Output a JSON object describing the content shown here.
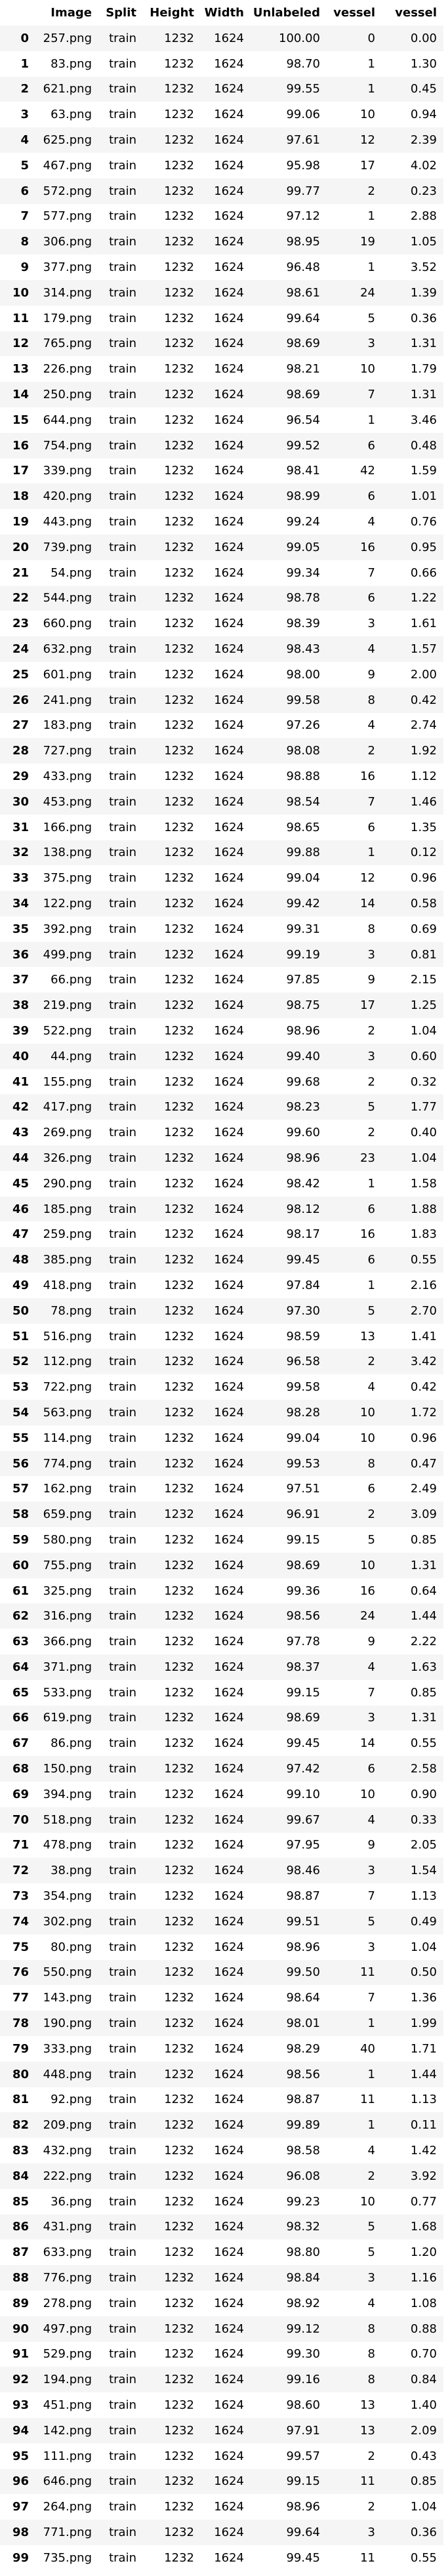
{
  "table": {
    "columns": [
      "Image",
      "Split",
      "Height",
      "Width",
      "Unlabeled",
      "vessel",
      "vessel"
    ],
    "rows": [
      [
        "0",
        "257.png",
        "train",
        "1232",
        "1624",
        "100.00",
        "0",
        "0.00"
      ],
      [
        "1",
        "83.png",
        "train",
        "1232",
        "1624",
        "98.70",
        "1",
        "1.30"
      ],
      [
        "2",
        "621.png",
        "train",
        "1232",
        "1624",
        "99.55",
        "1",
        "0.45"
      ],
      [
        "3",
        "63.png",
        "train",
        "1232",
        "1624",
        "99.06",
        "10",
        "0.94"
      ],
      [
        "4",
        "625.png",
        "train",
        "1232",
        "1624",
        "97.61",
        "12",
        "2.39"
      ],
      [
        "5",
        "467.png",
        "train",
        "1232",
        "1624",
        "95.98",
        "17",
        "4.02"
      ],
      [
        "6",
        "572.png",
        "train",
        "1232",
        "1624",
        "99.77",
        "2",
        "0.23"
      ],
      [
        "7",
        "577.png",
        "train",
        "1232",
        "1624",
        "97.12",
        "1",
        "2.88"
      ],
      [
        "8",
        "306.png",
        "train",
        "1232",
        "1624",
        "98.95",
        "19",
        "1.05"
      ],
      [
        "9",
        "377.png",
        "train",
        "1232",
        "1624",
        "96.48",
        "1",
        "3.52"
      ],
      [
        "10",
        "314.png",
        "train",
        "1232",
        "1624",
        "98.61",
        "24",
        "1.39"
      ],
      [
        "11",
        "179.png",
        "train",
        "1232",
        "1624",
        "99.64",
        "5",
        "0.36"
      ],
      [
        "12",
        "765.png",
        "train",
        "1232",
        "1624",
        "98.69",
        "3",
        "1.31"
      ],
      [
        "13",
        "226.png",
        "train",
        "1232",
        "1624",
        "98.21",
        "10",
        "1.79"
      ],
      [
        "14",
        "250.png",
        "train",
        "1232",
        "1624",
        "98.69",
        "7",
        "1.31"
      ],
      [
        "15",
        "644.png",
        "train",
        "1232",
        "1624",
        "96.54",
        "1",
        "3.46"
      ],
      [
        "16",
        "754.png",
        "train",
        "1232",
        "1624",
        "99.52",
        "6",
        "0.48"
      ],
      [
        "17",
        "339.png",
        "train",
        "1232",
        "1624",
        "98.41",
        "42",
        "1.59"
      ],
      [
        "18",
        "420.png",
        "train",
        "1232",
        "1624",
        "98.99",
        "6",
        "1.01"
      ],
      [
        "19",
        "443.png",
        "train",
        "1232",
        "1624",
        "99.24",
        "4",
        "0.76"
      ],
      [
        "20",
        "739.png",
        "train",
        "1232",
        "1624",
        "99.05",
        "16",
        "0.95"
      ],
      [
        "21",
        "54.png",
        "train",
        "1232",
        "1624",
        "99.34",
        "7",
        "0.66"
      ],
      [
        "22",
        "544.png",
        "train",
        "1232",
        "1624",
        "98.78",
        "6",
        "1.22"
      ],
      [
        "23",
        "660.png",
        "train",
        "1232",
        "1624",
        "98.39",
        "3",
        "1.61"
      ],
      [
        "24",
        "632.png",
        "train",
        "1232",
        "1624",
        "98.43",
        "4",
        "1.57"
      ],
      [
        "25",
        "601.png",
        "train",
        "1232",
        "1624",
        "98.00",
        "9",
        "2.00"
      ],
      [
        "26",
        "241.png",
        "train",
        "1232",
        "1624",
        "99.58",
        "8",
        "0.42"
      ],
      [
        "27",
        "183.png",
        "train",
        "1232",
        "1624",
        "97.26",
        "4",
        "2.74"
      ],
      [
        "28",
        "727.png",
        "train",
        "1232",
        "1624",
        "98.08",
        "2",
        "1.92"
      ],
      [
        "29",
        "433.png",
        "train",
        "1232",
        "1624",
        "98.88",
        "16",
        "1.12"
      ],
      [
        "30",
        "453.png",
        "train",
        "1232",
        "1624",
        "98.54",
        "7",
        "1.46"
      ],
      [
        "31",
        "166.png",
        "train",
        "1232",
        "1624",
        "98.65",
        "6",
        "1.35"
      ],
      [
        "32",
        "138.png",
        "train",
        "1232",
        "1624",
        "99.88",
        "1",
        "0.12"
      ],
      [
        "33",
        "375.png",
        "train",
        "1232",
        "1624",
        "99.04",
        "12",
        "0.96"
      ],
      [
        "34",
        "122.png",
        "train",
        "1232",
        "1624",
        "99.42",
        "14",
        "0.58"
      ],
      [
        "35",
        "392.png",
        "train",
        "1232",
        "1624",
        "99.31",
        "8",
        "0.69"
      ],
      [
        "36",
        "499.png",
        "train",
        "1232",
        "1624",
        "99.19",
        "3",
        "0.81"
      ],
      [
        "37",
        "66.png",
        "train",
        "1232",
        "1624",
        "97.85",
        "9",
        "2.15"
      ],
      [
        "38",
        "219.png",
        "train",
        "1232",
        "1624",
        "98.75",
        "17",
        "1.25"
      ],
      [
        "39",
        "522.png",
        "train",
        "1232",
        "1624",
        "98.96",
        "2",
        "1.04"
      ],
      [
        "40",
        "44.png",
        "train",
        "1232",
        "1624",
        "99.40",
        "3",
        "0.60"
      ],
      [
        "41",
        "155.png",
        "train",
        "1232",
        "1624",
        "99.68",
        "2",
        "0.32"
      ],
      [
        "42",
        "417.png",
        "train",
        "1232",
        "1624",
        "98.23",
        "5",
        "1.77"
      ],
      [
        "43",
        "269.png",
        "train",
        "1232",
        "1624",
        "99.60",
        "2",
        "0.40"
      ],
      [
        "44",
        "326.png",
        "train",
        "1232",
        "1624",
        "98.96",
        "23",
        "1.04"
      ],
      [
        "45",
        "290.png",
        "train",
        "1232",
        "1624",
        "98.42",
        "1",
        "1.58"
      ],
      [
        "46",
        "185.png",
        "train",
        "1232",
        "1624",
        "98.12",
        "6",
        "1.88"
      ],
      [
        "47",
        "259.png",
        "train",
        "1232",
        "1624",
        "98.17",
        "16",
        "1.83"
      ],
      [
        "48",
        "385.png",
        "train",
        "1232",
        "1624",
        "99.45",
        "6",
        "0.55"
      ],
      [
        "49",
        "418.png",
        "train",
        "1232",
        "1624",
        "97.84",
        "1",
        "2.16"
      ],
      [
        "50",
        "78.png",
        "train",
        "1232",
        "1624",
        "97.30",
        "5",
        "2.70"
      ],
      [
        "51",
        "516.png",
        "train",
        "1232",
        "1624",
        "98.59",
        "13",
        "1.41"
      ],
      [
        "52",
        "112.png",
        "train",
        "1232",
        "1624",
        "96.58",
        "2",
        "3.42"
      ],
      [
        "53",
        "722.png",
        "train",
        "1232",
        "1624",
        "99.58",
        "4",
        "0.42"
      ],
      [
        "54",
        "563.png",
        "train",
        "1232",
        "1624",
        "98.28",
        "10",
        "1.72"
      ],
      [
        "55",
        "114.png",
        "train",
        "1232",
        "1624",
        "99.04",
        "10",
        "0.96"
      ],
      [
        "56",
        "774.png",
        "train",
        "1232",
        "1624",
        "99.53",
        "8",
        "0.47"
      ],
      [
        "57",
        "162.png",
        "train",
        "1232",
        "1624",
        "97.51",
        "6",
        "2.49"
      ],
      [
        "58",
        "659.png",
        "train",
        "1232",
        "1624",
        "96.91",
        "2",
        "3.09"
      ],
      [
        "59",
        "580.png",
        "train",
        "1232",
        "1624",
        "99.15",
        "5",
        "0.85"
      ],
      [
        "60",
        "755.png",
        "train",
        "1232",
        "1624",
        "98.69",
        "10",
        "1.31"
      ],
      [
        "61",
        "325.png",
        "train",
        "1232",
        "1624",
        "99.36",
        "16",
        "0.64"
      ],
      [
        "62",
        "316.png",
        "train",
        "1232",
        "1624",
        "98.56",
        "24",
        "1.44"
      ],
      [
        "63",
        "366.png",
        "train",
        "1232",
        "1624",
        "97.78",
        "9",
        "2.22"
      ],
      [
        "64",
        "371.png",
        "train",
        "1232",
        "1624",
        "98.37",
        "4",
        "1.63"
      ],
      [
        "65",
        "533.png",
        "train",
        "1232",
        "1624",
        "99.15",
        "7",
        "0.85"
      ],
      [
        "66",
        "619.png",
        "train",
        "1232",
        "1624",
        "98.69",
        "3",
        "1.31"
      ],
      [
        "67",
        "86.png",
        "train",
        "1232",
        "1624",
        "99.45",
        "14",
        "0.55"
      ],
      [
        "68",
        "150.png",
        "train",
        "1232",
        "1624",
        "97.42",
        "6",
        "2.58"
      ],
      [
        "69",
        "394.png",
        "train",
        "1232",
        "1624",
        "99.10",
        "10",
        "0.90"
      ],
      [
        "70",
        "518.png",
        "train",
        "1232",
        "1624",
        "99.67",
        "4",
        "0.33"
      ],
      [
        "71",
        "478.png",
        "train",
        "1232",
        "1624",
        "97.95",
        "9",
        "2.05"
      ],
      [
        "72",
        "38.png",
        "train",
        "1232",
        "1624",
        "98.46",
        "3",
        "1.54"
      ],
      [
        "73",
        "354.png",
        "train",
        "1232",
        "1624",
        "98.87",
        "7",
        "1.13"
      ],
      [
        "74",
        "302.png",
        "train",
        "1232",
        "1624",
        "99.51",
        "5",
        "0.49"
      ],
      [
        "75",
        "80.png",
        "train",
        "1232",
        "1624",
        "98.96",
        "3",
        "1.04"
      ],
      [
        "76",
        "550.png",
        "train",
        "1232",
        "1624",
        "99.50",
        "11",
        "0.50"
      ],
      [
        "77",
        "143.png",
        "train",
        "1232",
        "1624",
        "98.64",
        "7",
        "1.36"
      ],
      [
        "78",
        "190.png",
        "train",
        "1232",
        "1624",
        "98.01",
        "1",
        "1.99"
      ],
      [
        "79",
        "333.png",
        "train",
        "1232",
        "1624",
        "98.29",
        "40",
        "1.71"
      ],
      [
        "80",
        "448.png",
        "train",
        "1232",
        "1624",
        "98.56",
        "1",
        "1.44"
      ],
      [
        "81",
        "92.png",
        "train",
        "1232",
        "1624",
        "98.87",
        "11",
        "1.13"
      ],
      [
        "82",
        "209.png",
        "train",
        "1232",
        "1624",
        "99.89",
        "1",
        "0.11"
      ],
      [
        "83",
        "432.png",
        "train",
        "1232",
        "1624",
        "98.58",
        "4",
        "1.42"
      ],
      [
        "84",
        "222.png",
        "train",
        "1232",
        "1624",
        "96.08",
        "2",
        "3.92"
      ],
      [
        "85",
        "36.png",
        "train",
        "1232",
        "1624",
        "99.23",
        "10",
        "0.77"
      ],
      [
        "86",
        "431.png",
        "train",
        "1232",
        "1624",
        "98.32",
        "5",
        "1.68"
      ],
      [
        "87",
        "633.png",
        "train",
        "1232",
        "1624",
        "98.80",
        "5",
        "1.20"
      ],
      [
        "88",
        "776.png",
        "train",
        "1232",
        "1624",
        "98.84",
        "3",
        "1.16"
      ],
      [
        "89",
        "278.png",
        "train",
        "1232",
        "1624",
        "98.92",
        "4",
        "1.08"
      ],
      [
        "90",
        "497.png",
        "train",
        "1232",
        "1624",
        "99.12",
        "8",
        "0.88"
      ],
      [
        "91",
        "529.png",
        "train",
        "1232",
        "1624",
        "99.30",
        "8",
        "0.70"
      ],
      [
        "92",
        "194.png",
        "train",
        "1232",
        "1624",
        "99.16",
        "8",
        "0.84"
      ],
      [
        "93",
        "451.png",
        "train",
        "1232",
        "1624",
        "98.60",
        "13",
        "1.40"
      ],
      [
        "94",
        "142.png",
        "train",
        "1232",
        "1624",
        "97.91",
        "13",
        "2.09"
      ],
      [
        "95",
        "111.png",
        "train",
        "1232",
        "1624",
        "99.57",
        "2",
        "0.43"
      ],
      [
        "96",
        "646.png",
        "train",
        "1232",
        "1624",
        "99.15",
        "11",
        "0.85"
      ],
      [
        "97",
        "264.png",
        "train",
        "1232",
        "1624",
        "98.96",
        "2",
        "1.04"
      ],
      [
        "98",
        "771.png",
        "train",
        "1232",
        "1624",
        "99.64",
        "3",
        "0.36"
      ],
      [
        "99",
        "735.png",
        "train",
        "1232",
        "1624",
        "99.45",
        "11",
        "0.55"
      ]
    ]
  }
}
